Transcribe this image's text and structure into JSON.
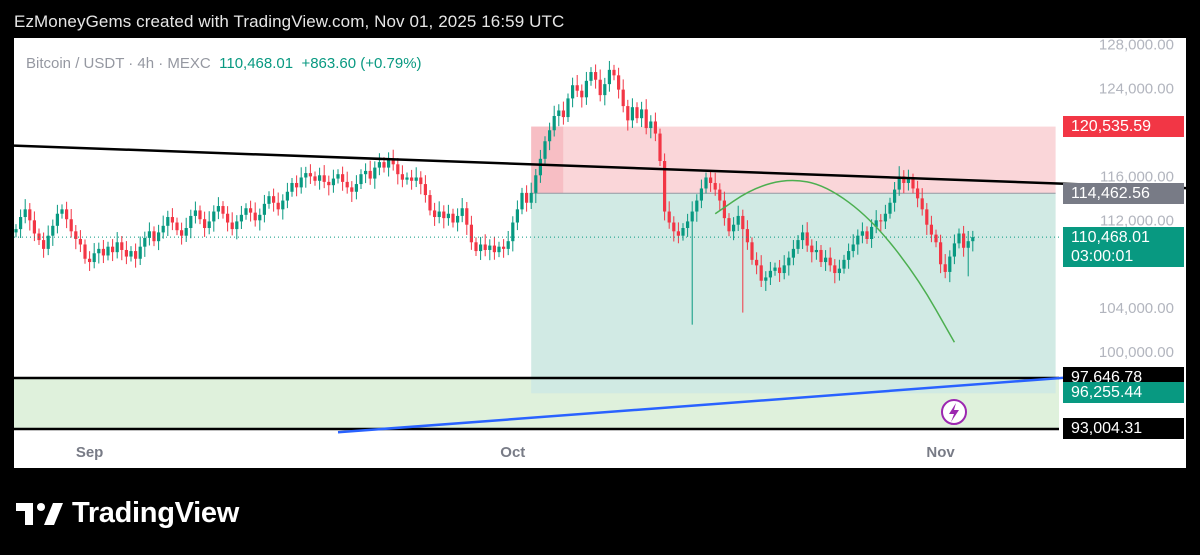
{
  "header": {
    "credit": "EzMoneyGems created with TradingView.com, Nov 01, 2025 16:59 UTC"
  },
  "legend": {
    "symbol": "Bitcoin / USDT · 4h · MEXC",
    "last": "110,468.01",
    "change": "+863.60 (+0.79%)"
  },
  "footer": {
    "brand": "TradingView"
  },
  "colors": {
    "up": "#089981",
    "down": "#f23645",
    "trendline": "#000000",
    "support_line": "#2962ff",
    "curve": "#4caf50",
    "target_zone": "#cfe9e3",
    "stop_zone": "#f9d2d5",
    "support_zone": "#dff1dc"
  },
  "chart_data": {
    "type": "candlestick",
    "symbol": "Bitcoin / USDT",
    "interval": "4h",
    "exchange": "MEXC",
    "ylim": [
      93000,
      128600
    ],
    "y_ticks": [
      100000,
      104000,
      112000,
      116000,
      124000,
      128000
    ],
    "y_tick_labels": [
      "100,000.00",
      "104,000.00",
      "112,000.00",
      "116,000.00",
      "124,000.00",
      "128,000.00"
    ],
    "x_ticks": [
      "Sep",
      "Oct",
      "Nov"
    ],
    "price_labels": [
      {
        "text": "120,535.59",
        "value": 120535.59,
        "color": "#f23645"
      },
      {
        "text": "114,462.56",
        "value": 114462.56,
        "color": "#787b86"
      },
      {
        "text": "110,468.01",
        "sub": "03:00:01",
        "value": 110468.01,
        "color": "#089981"
      },
      {
        "text": "97,646.78",
        "value": 97646.78,
        "color": "#000000"
      },
      {
        "text": "96,255.44",
        "value": 96255.44,
        "color": "#089981"
      },
      {
        "text": "93,004.31",
        "value": 93004.31,
        "color": "#000000"
      }
    ],
    "closes": [
      111200,
      112300,
      113000,
      112000,
      110800,
      110200,
      109400,
      110600,
      111500,
      112600,
      113000,
      112100,
      111000,
      110300,
      109800,
      108500,
      108200,
      109000,
      109400,
      108800,
      109600,
      109100,
      110000,
      109300,
      108700,
      109200,
      108500,
      109600,
      110400,
      111000,
      110100,
      110900,
      111500,
      112300,
      111800,
      111100,
      110600,
      111300,
      112400,
      112900,
      112100,
      111300,
      111900,
      112800,
      113300,
      112600,
      111800,
      111200,
      111900,
      112500,
      113100,
      112700,
      112000,
      112500,
      113500,
      114200,
      113600,
      113000,
      113800,
      114600,
      115400,
      115000,
      115900,
      116300,
      116000,
      115600,
      116100,
      115500,
      115200,
      115800,
      116200,
      115500,
      115000,
      114600,
      115300,
      116200,
      116500,
      115800,
      116800,
      117300,
      116800,
      117500,
      117100,
      116200,
      115700,
      115900,
      115600,
      115900,
      115300,
      114300,
      112900,
      112300,
      112800,
      112200,
      112600,
      111800,
      112400,
      113100,
      111600,
      110000,
      109200,
      109800,
      109300,
      109700,
      109100,
      109600,
      109400,
      110100,
      111800,
      113000,
      114500,
      113600,
      114500,
      116100,
      117600,
      119200,
      120200,
      121500,
      122000,
      121400,
      123100,
      124300,
      123800,
      123200,
      124700,
      125500,
      124800,
      123400,
      124400,
      125700,
      125200,
      123900,
      122400,
      121100,
      122300,
      121300,
      122100,
      120400,
      121000,
      119900,
      117400,
      112800,
      111800,
      111000,
      110600,
      111300,
      111900,
      112800,
      113800,
      114900,
      115900,
      115400,
      114800,
      113800,
      112200,
      111000,
      111600,
      112400,
      111200,
      110000,
      108400,
      107900,
      106500,
      106800,
      107400,
      107700,
      107200,
      107900,
      108600,
      109400,
      110200,
      110900,
      109700,
      109100,
      109300,
      108200,
      108600,
      107900,
      107200,
      107600,
      108400,
      109200,
      109800,
      110600,
      111000,
      110300,
      111400,
      112000,
      111900,
      112600,
      113600,
      114800,
      116000,
      115400,
      115800,
      114900,
      114000,
      113000,
      111600,
      110700,
      110000,
      108000,
      107300,
      108700,
      109900,
      110800,
      109500,
      110100,
      110468
    ],
    "trendline": {
      "from": {
        "candle": 0,
        "price": 118800
      },
      "to": {
        "candle": 230,
        "price": 115300
      }
    },
    "support_line": {
      "from": {
        "candle": 70,
        "price": 92700
      },
      "to": {
        "candle": 248,
        "price": 98300
      }
    },
    "long_position": {
      "entry": 114462.56,
      "stop": 120535.59,
      "target": 96255.44,
      "from_candle": 112,
      "to_candle": 226
    },
    "support_zone": {
      "top": 97646.78,
      "bottom": 93004.31
    },
    "curve": [
      {
        "candle": 152,
        "price": 112600
      },
      {
        "candle": 160,
        "price": 114900
      },
      {
        "candle": 168,
        "price": 115800
      },
      {
        "candle": 176,
        "price": 115200
      },
      {
        "candle": 186,
        "price": 112100
      },
      {
        "candle": 196,
        "price": 106800
      },
      {
        "candle": 204,
        "price": 100900
      }
    ]
  }
}
